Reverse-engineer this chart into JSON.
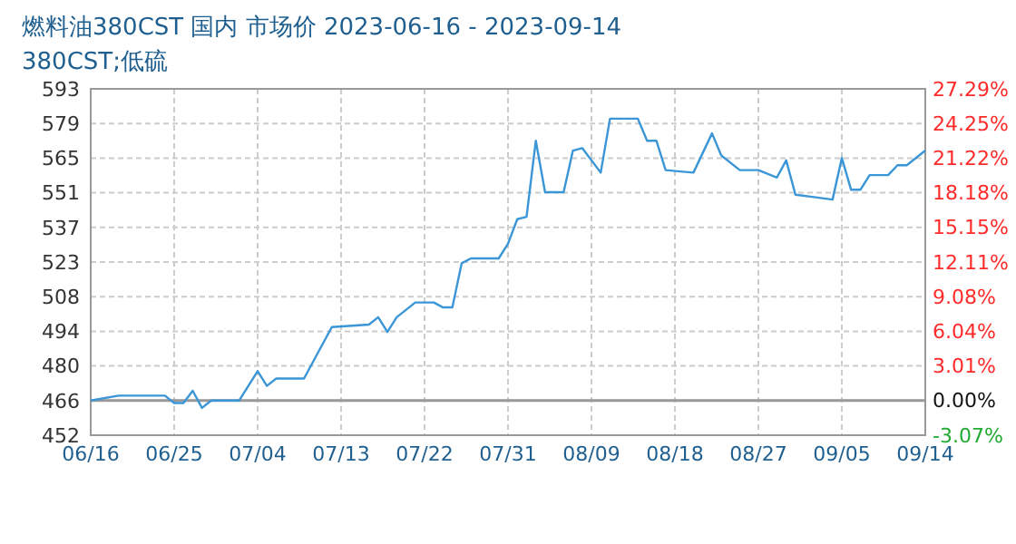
{
  "chart_data": {
    "type": "line",
    "title": "燃料油380CST 国内 市场价 2023-06-16 - 2023-09-14",
    "subtitle": "380CST;低硫",
    "x": [
      "2023-06-16",
      "2023-06-19",
      "2023-06-24",
      "2023-06-25",
      "2023-06-26",
      "2023-06-27",
      "2023-06-28",
      "2023-06-29",
      "2023-07-02",
      "2023-07-04",
      "2023-07-05",
      "2023-07-06",
      "2023-07-09",
      "2023-07-12",
      "2023-07-16",
      "2023-07-17",
      "2023-07-18",
      "2023-07-19",
      "2023-07-21",
      "2023-07-23",
      "2023-07-24",
      "2023-07-25",
      "2023-07-26",
      "2023-07-27",
      "2023-07-30",
      "2023-07-31",
      "2023-08-01",
      "2023-08-02",
      "2023-08-03",
      "2023-08-04",
      "2023-08-06",
      "2023-08-07",
      "2023-08-08",
      "2023-08-10",
      "2023-08-11",
      "2023-08-14",
      "2023-08-15",
      "2023-08-16",
      "2023-08-17",
      "2023-08-20",
      "2023-08-22",
      "2023-08-23",
      "2023-08-25",
      "2023-08-27",
      "2023-08-29",
      "2023-08-30",
      "2023-08-31",
      "2023-09-02",
      "2023-09-04",
      "2023-09-05",
      "2023-09-06",
      "2023-09-07",
      "2023-09-08",
      "2023-09-10",
      "2023-09-11",
      "2023-09-12",
      "2023-09-14"
    ],
    "series": [
      {
        "color": "#3a96d6",
        "values": [
          466,
          468,
          468,
          465,
          465,
          470,
          463,
          466,
          466,
          478,
          472,
          475,
          475,
          496,
          497,
          500,
          494,
          500,
          506,
          506,
          504,
          504,
          522,
          524,
          524,
          530,
          540,
          541,
          572,
          551,
          551,
          568,
          569,
          559,
          581,
          581,
          572,
          572,
          560,
          559,
          575,
          566,
          560,
          560,
          557,
          564,
          550,
          549,
          548,
          565,
          552,
          552,
          558,
          558,
          562,
          562,
          568
        ]
      }
    ],
    "xlim": [
      "2023-06-16",
      "2023-09-14"
    ],
    "xticks": [
      {
        "value": "2023-06-16",
        "label": "06/16"
      },
      {
        "value": "2023-06-25",
        "label": "06/25"
      },
      {
        "value": "2023-07-04",
        "label": "07/04"
      },
      {
        "value": "2023-07-13",
        "label": "07/13"
      },
      {
        "value": "2023-07-22",
        "label": "07/22"
      },
      {
        "value": "2023-07-31",
        "label": "07/31"
      },
      {
        "value": "2023-08-09",
        "label": "08/09"
      },
      {
        "value": "2023-08-18",
        "label": "08/18"
      },
      {
        "value": "2023-08-27",
        "label": "08/27"
      },
      {
        "value": "2023-09-05",
        "label": "09/05"
      },
      {
        "value": "2023-09-14",
        "label": "09/14"
      }
    ],
    "ylim": [
      451.87,
      593.17
    ],
    "yticks": [
      {
        "value": 451.87,
        "label": "452"
      },
      {
        "value": 466,
        "label": "466"
      },
      {
        "value": 480.13,
        "label": "480"
      },
      {
        "value": 494.26,
        "label": "494"
      },
      {
        "value": 508.39,
        "label": "508"
      },
      {
        "value": 522.52,
        "label": "523"
      },
      {
        "value": 536.65,
        "label": "537"
      },
      {
        "value": 550.78,
        "label": "551"
      },
      {
        "value": 564.91,
        "label": "565"
      },
      {
        "value": 579.04,
        "label": "579"
      },
      {
        "value": 593.17,
        "label": "593"
      }
    ],
    "y2lim": [
      -3.07,
      27.29
    ],
    "y2ticks": [
      {
        "value": -3.07,
        "label": "-3.07%"
      },
      {
        "value": 0,
        "label": "0.00%"
      },
      {
        "value": 3.01,
        "label": "3.01%"
      },
      {
        "value": 6.04,
        "label": "6.04%"
      },
      {
        "value": 9.08,
        "label": "9.08%"
      },
      {
        "value": 12.11,
        "label": "12.11%"
      },
      {
        "value": 15.15,
        "label": "15.15%"
      },
      {
        "value": 18.18,
        "label": "18.18%"
      },
      {
        "value": 21.22,
        "label": "21.22%"
      },
      {
        "value": 24.25,
        "label": "24.25%"
      },
      {
        "value": 27.29,
        "label": "27.29%"
      }
    ],
    "ref_lines": [
      {
        "axis": "y",
        "value": 466,
        "color": "#999999"
      }
    ],
    "grid": true,
    "marker": "none",
    "line_style": "solid"
  }
}
